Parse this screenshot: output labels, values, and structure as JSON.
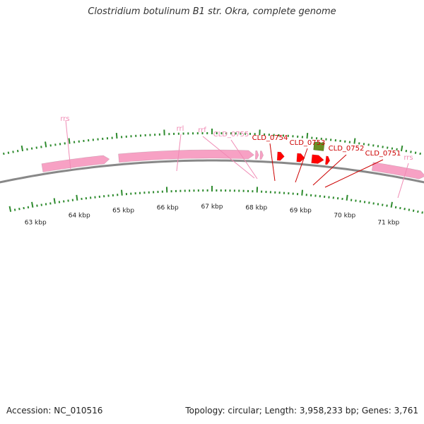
{
  "title": "Clostridium botulinum B1 str. Okra, complete genome",
  "accession_text": "Accession: NC_010516",
  "summary_text": "Topology: circular; Length: 3,958,233 bp; Genes: 3,761",
  "colors": {
    "rna_feature": "#f7a1c4",
    "rna_label": "#f08ab4",
    "gene": "#ff0000",
    "gene_label": "#cc0000",
    "misc_feature": "#6b8e23",
    "tick": "#2e8b2e",
    "backbone": "#888888"
  },
  "ruler_labels": [
    "63 kbp",
    "64 kbp",
    "65 kbp",
    "66 kbp",
    "67 kbp",
    "68 kbp",
    "69 kbp",
    "70 kbp",
    "71 kbp"
  ],
  "features": {
    "rna": [
      {
        "kbp_start": 63.35,
        "kbp_end": 64.8
      },
      {
        "kbp_start": 65.0,
        "kbp_end": 67.9
      },
      {
        "kbp_start": 67.93,
        "kbp_end": 68.0
      },
      {
        "kbp_start": 68.03,
        "kbp_end": 68.1
      },
      {
        "kbp_start": 70.45,
        "kbp_end": 71.6
      }
    ],
    "genes": [
      {
        "kbp_start": 68.4,
        "kbp_end": 68.55
      },
      {
        "kbp_start": 68.82,
        "kbp_end": 68.99
      },
      {
        "kbp_start": 69.14,
        "kbp_end": 69.4
      },
      {
        "kbp_start": 69.44,
        "kbp_end": 69.53
      }
    ],
    "misc": [
      {
        "kbp_start": 69.16,
        "kbp_end": 69.37
      }
    ]
  },
  "labels": [
    {
      "text": "rrs",
      "kind": "rna"
    },
    {
      "text": "rrl",
      "kind": "rna"
    },
    {
      "text": "rrf",
      "kind": "rna"
    },
    {
      "text": "CLD_0755",
      "kind": "rna"
    },
    {
      "text": "CLD_0754",
      "kind": "gene"
    },
    {
      "text": "CLD_0753",
      "kind": "gene"
    },
    {
      "text": "CLD_0752",
      "kind": "gene"
    },
    {
      "text": "CLD_0751",
      "kind": "gene"
    },
    {
      "text": "rrs",
      "kind": "rna"
    }
  ]
}
